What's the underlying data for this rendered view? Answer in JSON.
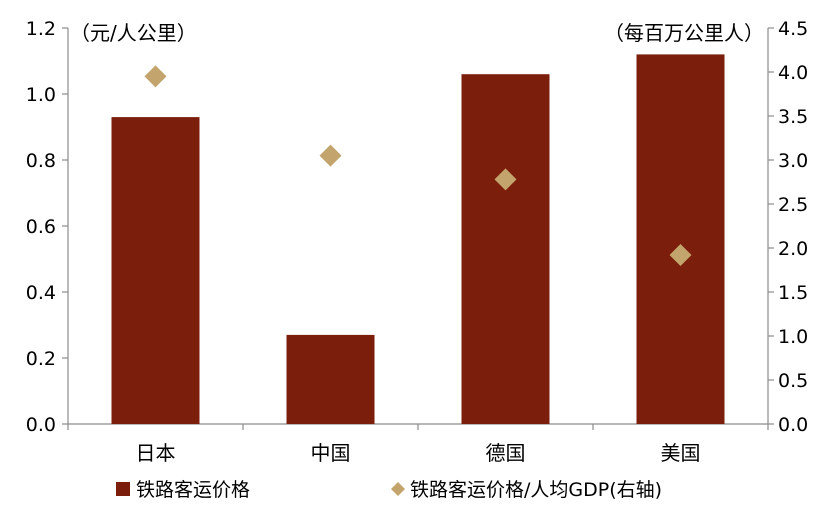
{
  "chart_data": {
    "type": "bar",
    "categories": [
      "日本",
      "中国",
      "德国",
      "美国"
    ],
    "series": [
      {
        "name": "铁路客运价格",
        "kind": "bar",
        "axis": "left",
        "color": "#7B1E0B",
        "values": [
          0.93,
          0.27,
          1.06,
          1.12
        ]
      },
      {
        "name": "铁路客运价格/人均GDP(右轴)",
        "kind": "scatter",
        "marker": "diamond",
        "axis": "right",
        "color": "#C2A46C",
        "values": [
          3.95,
          3.05,
          2.78,
          1.92
        ]
      }
    ],
    "y_left": {
      "unit_label": "（元/人公里）",
      "range": [
        0,
        1.2
      ],
      "ticks": [
        "0.0",
        "0.2",
        "0.4",
        "0.6",
        "0.8",
        "1.0",
        "1.2"
      ]
    },
    "y_right": {
      "unit_label": "（每百万公里人）",
      "range": [
        0,
        4.5
      ],
      "ticks": [
        "0.0",
        "0.5",
        "1.0",
        "1.5",
        "2.0",
        "2.5",
        "3.0",
        "3.5",
        "4.0",
        "4.5"
      ]
    },
    "grid": false,
    "legend_position": "bottom"
  }
}
